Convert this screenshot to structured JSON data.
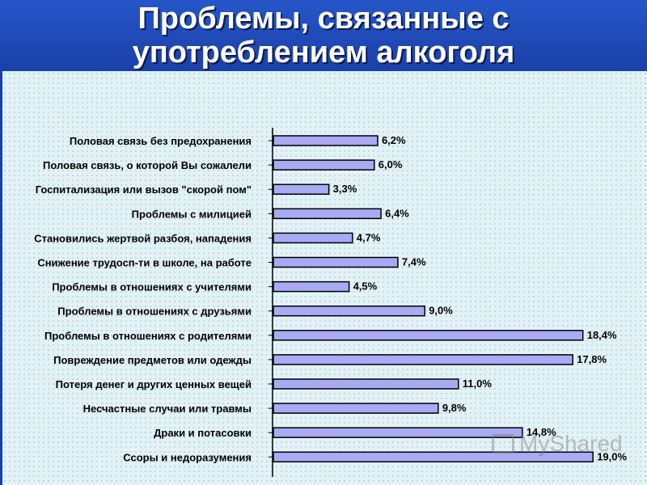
{
  "title_line1": "Проблемы, связанные с",
  "title_line2": "употреблением алкоголя",
  "watermark": "MyShared",
  "chart_data": {
    "type": "bar",
    "orientation": "horizontal",
    "categories": [
      "Половая связь без предохранения",
      "Половая связь, о которой Вы сожалели",
      "Госпитализация или вызов \"скорой пом\"",
      "Проблемы с милицией",
      "Становились жертвой разбоя, нападения",
      "Снижение трудосп-ти в школе, на работе",
      "Проблемы в отношениях с учителями",
      "Проблемы в отношениях с друзьями",
      "Проблемы в отношениях с родителями",
      "Повреждение предметов или одежды",
      "Потеря денег и других ценных вещей",
      "Несчастные случаи или травмы",
      "Драки и потасовки",
      "Ссоры и недоразумения"
    ],
    "values": [
      6.2,
      6.0,
      3.3,
      6.4,
      4.7,
      7.4,
      4.5,
      9.0,
      18.4,
      17.8,
      11.0,
      9.8,
      14.8,
      19.0
    ],
    "value_labels": [
      "6,2%",
      "6,0%",
      "3,3%",
      "6,4%",
      "4,7%",
      "7,4%",
      "4,5%",
      "9,0%",
      "18,4%",
      "17,8%",
      "11,0%",
      "9,8%",
      "14,8%",
      "19,0%"
    ],
    "xlim": [
      0,
      20
    ],
    "bar_color": "#a9a9f4",
    "grid": false,
    "legend": "none"
  }
}
